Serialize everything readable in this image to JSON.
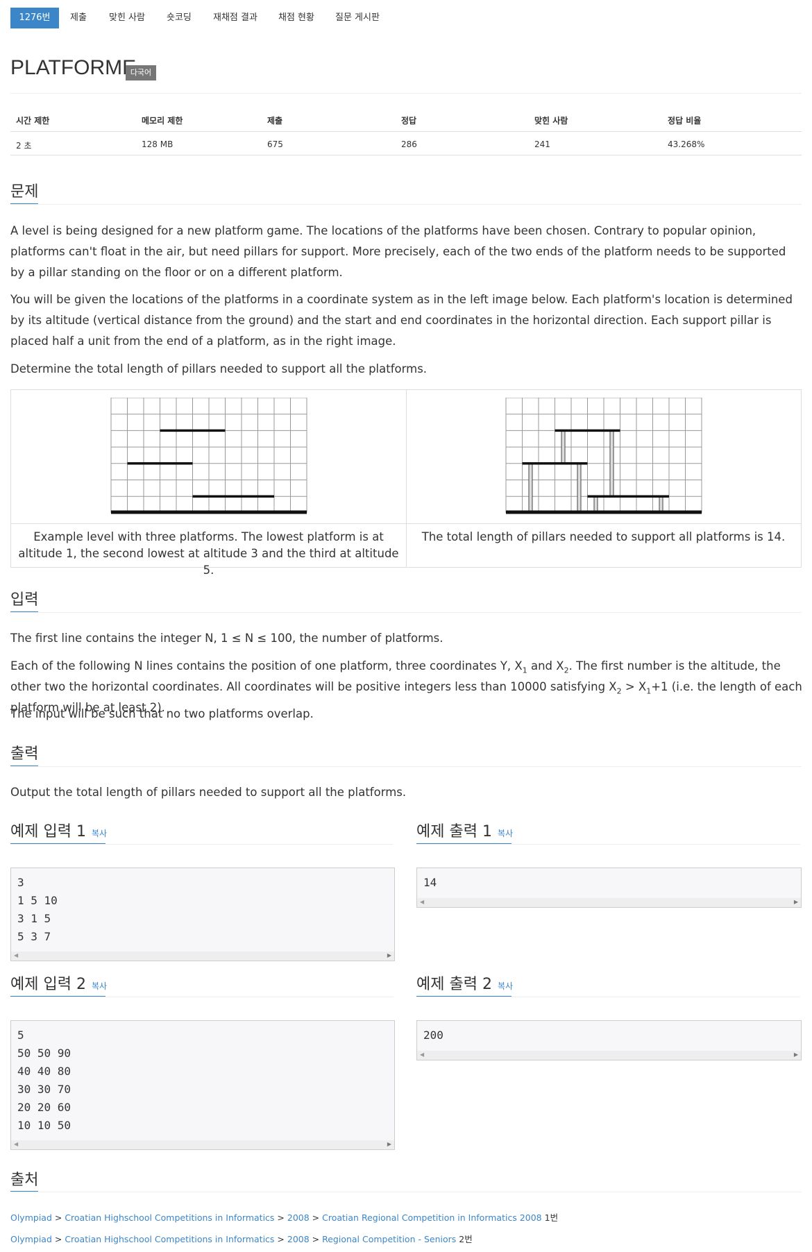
{
  "tabs": [
    {
      "label": "1276번",
      "active": true
    },
    {
      "label": "제출"
    },
    {
      "label": "맞힌 사람"
    },
    {
      "label": "숏코딩"
    },
    {
      "label": "재채점 결과"
    },
    {
      "label": "채점 현황"
    },
    {
      "label": "질문 게시판"
    }
  ],
  "problem": {
    "title": "PLATFORME",
    "badge": "다국어"
  },
  "info": {
    "headers": [
      "시간 제한",
      "메모리 제한",
      "제출",
      "정답",
      "맞힌 사람",
      "정답 비율"
    ],
    "values": [
      "2 초",
      "128 MB",
      "675",
      "286",
      "241",
      "43.268%"
    ]
  },
  "sections": {
    "problem_heading": "문제",
    "problem_p1": "A level is being designed for a new platform game. The locations of the platforms have been chosen. Contrary to popular opinion, platforms can't float in the air, but need pillars for support. More precisely, each of the two ends of the platform needs to be supported by a pillar standing on the floor or on a different platform.",
    "problem_p2": "You will be given the locations of the platforms in a coordinate system as in the left image below. Each platform's location is determined by its altitude (vertical distance from the ground) and the start and end coordinates in the horizontal direction. Each support pillar is placed half a unit from the end of a platform, as in the right image.",
    "problem_p3": "Determine the total length of pillars needed to support all the platforms.",
    "caption_left": "Example level with three platforms. The lowest platform is at altitude 1, the second lowest at altitude 3 and the third at altitude 5.",
    "caption_right": "The total length of pillars needed to support all platforms is 14.",
    "input_heading": "입력",
    "input_p1": "The first line contains the integer N, 1 ≤ N ≤ 100, the number of platforms.",
    "input_p2_a": "Each of the following N lines contains the position of one platform, three coordinates Y, X",
    "input_p2_b": " and X",
    "input_p2_c": ". The first number is the altitude, the other two the horizontal coordinates. All coordinates will be positive integers less than 10000 satisfying X",
    "input_p2_d": " > X",
    "input_p2_e": "+1 (i.e. the length of each platform will be at least 2).",
    "sub1": "1",
    "sub2": "2",
    "input_p3": "The input will be such that no two platforms overlap.",
    "output_heading": "출력",
    "output_p1": "Output the total length of pillars needed to support all the platforms.",
    "source_heading": "출처"
  },
  "samples": {
    "copy_label": "복사",
    "in1_title": "예제 입력 1",
    "out1_title": "예제 출력 1",
    "in2_title": "예제 입력 2",
    "out2_title": "예제 출력 2",
    "in1": "3\n1 5 10\n3 1 5\n5 3 7",
    "out1": "14",
    "in2": "5\n50 50 90\n40 40 80\n30 30 70\n20 20 60\n10 10 50",
    "out2": "200"
  },
  "sources": [
    {
      "links": [
        "Olympiad",
        "Croatian Highschool Competitions in Informatics",
        "2008",
        "Croatian Regional Competition in Informatics 2008"
      ],
      "suffix": "1번"
    },
    {
      "links": [
        "Olympiad",
        "Croatian Highschool Competitions in Informatics",
        "2008",
        "Regional Competition - Seniors"
      ],
      "suffix": "2번"
    }
  ],
  "colors": {
    "accent": "#3b86c8",
    "badge": "#777777"
  }
}
